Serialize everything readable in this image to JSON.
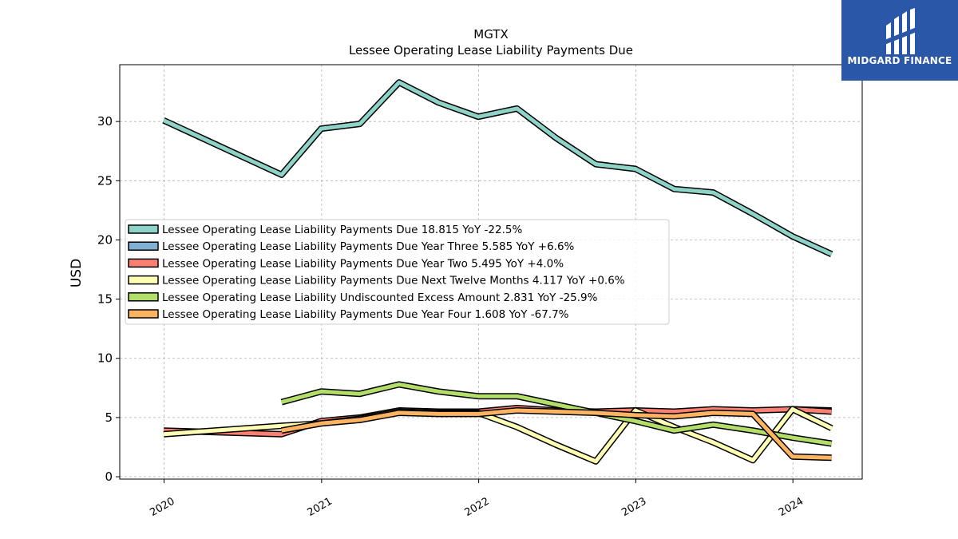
{
  "logo": {
    "text": "MIDGARD FINANCE",
    "icon": "midgard-logo-icon",
    "bg_color": "#2a57a8"
  },
  "chart_data": {
    "type": "line",
    "title": "MGTX",
    "subtitle": "Lessee Operating Lease Liability Payments Due",
    "ylabel": "USD",
    "xlabel": "",
    "ylim": [
      -0.2,
      34.8
    ],
    "xlim": [
      "2019-09-20",
      "2024-06-10"
    ],
    "y_ticks": [
      0,
      5,
      10,
      15,
      20,
      25,
      30
    ],
    "x_ticks": [
      "2020",
      "2021",
      "2022",
      "2023",
      "2024"
    ],
    "x_tick_dates": [
      "2020-01-01",
      "2021-01-01",
      "2022-01-01",
      "2023-01-01",
      "2024-01-01"
    ],
    "grid": true,
    "legend_position": "center-left",
    "series": [
      {
        "name": "Lessee Operating Lease Liability Payments Due",
        "legend": "Lessee Operating Lease Liability Payments Due  18.815 YoY -22.5%",
        "color": "#8dd3c7",
        "x": [
          "2019-12-31",
          "2020-09-30",
          "2020-12-31",
          "2021-03-31",
          "2021-06-30",
          "2021-09-30",
          "2021-12-31",
          "2022-03-31",
          "2022-06-30",
          "2022-09-30",
          "2022-12-31",
          "2023-03-31",
          "2023-06-30",
          "2023-09-30",
          "2023-12-31",
          "2024-03-31"
        ],
        "y": [
          30.1,
          25.5,
          29.4,
          29.8,
          33.3,
          31.6,
          30.4,
          31.1,
          28.6,
          26.4,
          26.0,
          24.3,
          24.0,
          22.2,
          20.3,
          18.8
        ]
      },
      {
        "name": "Lessee Operating Lease Liability Payments Due Year Three",
        "legend": "Lessee Operating Lease Liability Payments Due Year Three  5.585 YoY +6.6%",
        "color": "#80b1d3",
        "x": [
          "2023-12-31",
          "2024-03-31"
        ],
        "y": [
          5.7,
          5.6
        ]
      },
      {
        "name": "Lessee Operating Lease Liability Payments Due Year Two",
        "legend": "Lessee Operating Lease Liability Payments Due Year Two  5.495 YoY +4.0%",
        "color": "#fb8072",
        "x": [
          "2019-12-31",
          "2020-09-30",
          "2020-12-31",
          "2021-03-31",
          "2021-06-30",
          "2021-09-30",
          "2021-12-31",
          "2022-03-31",
          "2022-06-30",
          "2022-09-30",
          "2022-12-31",
          "2023-03-31",
          "2023-06-30",
          "2023-09-30",
          "2023-12-31",
          "2024-03-31"
        ],
        "y": [
          3.9,
          3.6,
          4.7,
          5.0,
          5.6,
          5.5,
          5.5,
          5.8,
          5.6,
          5.5,
          5.6,
          5.5,
          5.7,
          5.6,
          5.7,
          5.5
        ]
      },
      {
        "name": "Lessee Operating Lease Liability Payments Due Next Twelve Months",
        "legend": "Lessee Operating Lease Liability Payments Due Next Twelve Months  4.117 YoY +0.6%",
        "color": "#ffffb3",
        "x": [
          "2019-12-31",
          "2020-09-30",
          "2020-12-31",
          "2021-03-31",
          "2021-06-30",
          "2021-09-30",
          "2021-12-31",
          "2022-03-31",
          "2022-06-30",
          "2022-09-30",
          "2022-12-31",
          "2023-03-31",
          "2023-06-30",
          "2023-09-30",
          "2023-12-31",
          "2024-03-31"
        ],
        "y": [
          3.6,
          4.3,
          4.5,
          4.9,
          5.5,
          5.4,
          5.4,
          4.2,
          2.7,
          1.3,
          5.6,
          4.2,
          2.9,
          1.4,
          5.7,
          4.1
        ]
      },
      {
        "name": "Lessee Operating Lease Liability Undiscounted Excess Amount",
        "legend": "Lessee Operating Lease Liability Undiscounted Excess Amount  2.831 YoY -25.9%",
        "color": "#b3de69",
        "x": [
          "2020-09-30",
          "2020-12-31",
          "2021-03-31",
          "2021-06-30",
          "2021-09-30",
          "2021-12-31",
          "2022-03-31",
          "2022-06-30",
          "2022-09-30",
          "2022-12-31",
          "2023-03-31",
          "2023-06-30",
          "2023-09-30",
          "2023-12-31",
          "2024-03-31"
        ],
        "y": [
          6.3,
          7.2,
          7.0,
          7.8,
          7.2,
          6.8,
          6.8,
          6.1,
          5.4,
          4.7,
          3.9,
          4.4,
          3.9,
          3.3,
          2.8
        ]
      },
      {
        "name": "Lessee Operating Lease Liability Payments Due Year Four",
        "legend": "Lessee Operating Lease Liability Payments Due Year Four  1.608 YoY -67.7%",
        "color": "#fdb462",
        "x": [
          "2020-09-30",
          "2020-12-31",
          "2021-03-31",
          "2021-06-30",
          "2021-09-30",
          "2021-12-31",
          "2022-03-31",
          "2022-06-30",
          "2022-09-30",
          "2022-12-31",
          "2023-03-31",
          "2023-06-30",
          "2023-09-30",
          "2023-12-31",
          "2024-03-31"
        ],
        "y": [
          3.9,
          4.5,
          4.8,
          5.4,
          5.3,
          5.3,
          5.6,
          5.5,
          5.4,
          5.2,
          5.1,
          5.4,
          5.3,
          1.7,
          1.6
        ]
      }
    ]
  }
}
